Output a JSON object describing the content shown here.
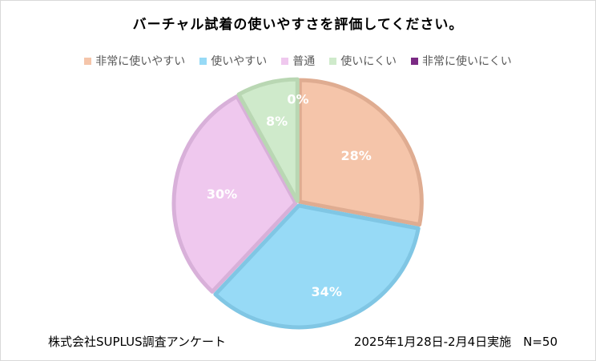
{
  "chart_data": {
    "type": "pie",
    "title": "バーチャル試着の使いやすさを評価してください。",
    "categories": [
      "非常に使いやすい",
      "使いやすい",
      "普通",
      "使いにくい",
      "非常に使いにくい"
    ],
    "values": [
      28,
      34,
      30,
      8,
      0
    ],
    "labels": [
      "28%",
      "34%",
      "30%",
      "8%",
      "0%"
    ],
    "colors": [
      "#f5c5aa",
      "#97daf6",
      "#efc8ee",
      "#cfeacb",
      "#7b2a84"
    ],
    "border_colors": [
      "#dfac91",
      "#80c6e4",
      "#d8b0d9",
      "#b9d7b3",
      "#7b2a84"
    ],
    "legend_position": "top"
  },
  "footer": {
    "source": "株式会社SUPLUS調査アンケート",
    "survey_info": "2025年1月28日-2月4日実施　N=50"
  }
}
